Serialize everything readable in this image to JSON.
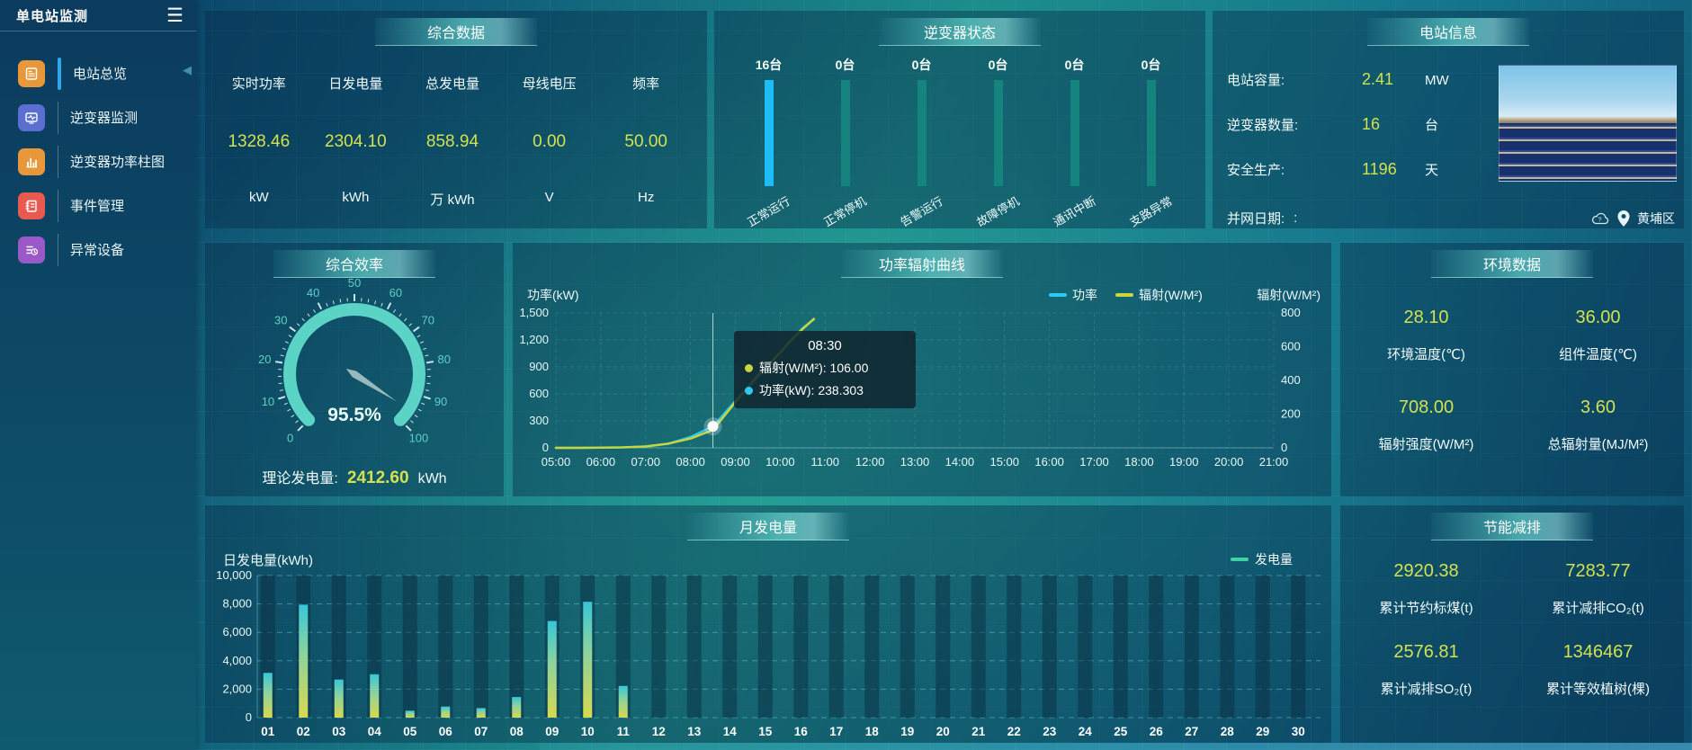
{
  "sidebar": {
    "title": "单电站监测",
    "menu": [
      {
        "label": "电站总览",
        "icon": "document-icon",
        "color": "#e8983a",
        "active": true
      },
      {
        "label": "逆变器监测",
        "icon": "monitor-pulse-icon",
        "color": "#5a6fd0",
        "active": false
      },
      {
        "label": "逆变器功率柱图",
        "icon": "bar-chart-icon",
        "color": "#e8983a",
        "active": false
      },
      {
        "label": "事件管理",
        "icon": "notebook-icon",
        "color": "#e85a50",
        "active": false
      },
      {
        "label": "异常设备",
        "icon": "device-list-icon",
        "color": "#9b59c8",
        "active": false
      }
    ]
  },
  "panels": {
    "summary": {
      "title": "综合数据",
      "metrics": [
        {
          "label": "实时功率",
          "value": "1328.46",
          "unit": "kW"
        },
        {
          "label": "日发电量",
          "value": "2304.10",
          "unit": "kWh"
        },
        {
          "label": "总发电量",
          "value": "858.94",
          "unit": "万 kWh"
        },
        {
          "label": "母线电压",
          "value": "0.00",
          "unit": "V"
        },
        {
          "label": "频率",
          "value": "50.00",
          "unit": "Hz"
        }
      ]
    },
    "inverter_status": {
      "title": "逆变器状态",
      "active_color": "#1fbdf5",
      "idle_color": "#15847f",
      "items": [
        {
          "count": "16台",
          "label": "正常运行",
          "active": true
        },
        {
          "count": "0台",
          "label": "正常停机",
          "active": false
        },
        {
          "count": "0台",
          "label": "告警运行",
          "active": false
        },
        {
          "count": "0台",
          "label": "故障停机",
          "active": false
        },
        {
          "count": "0台",
          "label": "通讯中断",
          "active": false
        },
        {
          "count": "0台",
          "label": "支路异常",
          "active": false
        }
      ]
    },
    "station_info": {
      "title": "电站信息",
      "rows": [
        {
          "label": "电站容量:",
          "value": "2.41",
          "unit": "MW"
        },
        {
          "label": "逆变器数量:",
          "value": "16",
          "unit": "台"
        },
        {
          "label": "安全生产:",
          "value": "1196",
          "unit": "天"
        }
      ],
      "grid_date_label": "并网日期:",
      "grid_date_value": ":",
      "location": "黄埔区"
    },
    "efficiency": {
      "title": "综合效率",
      "footer_label": "理论发电量:",
      "footer_value": "2412.60",
      "footer_unit": "kWh"
    },
    "environment": {
      "title": "环境数据",
      "metrics": [
        {
          "value": "28.10",
          "label": "环境温度(℃)"
        },
        {
          "value": "36.00",
          "label": "组件温度(℃)"
        },
        {
          "value": "708.00",
          "label": "辐射强度(W/M²)"
        },
        {
          "value": "3.60",
          "label": "总辐射量(MJ/M²)"
        }
      ]
    },
    "energy_saving": {
      "title": "节能减排",
      "metrics": [
        {
          "value": "2920.38",
          "label": "累计节约标煤(t)"
        },
        {
          "value": "7283.77",
          "label": "累计减排CO₂(t)"
        },
        {
          "value": "2576.81",
          "label": "累计减排SO₂(t)"
        },
        {
          "value": "1346467",
          "label": "累计等效植树(棵)"
        }
      ]
    }
  },
  "chart_data": [
    {
      "id": "efficiency_gauge",
      "type": "gauge",
      "title": "综合效率",
      "min": 0,
      "max": 100,
      "tick_labels": [
        0,
        10,
        20,
        30,
        40,
        50,
        60,
        70,
        80,
        90,
        100
      ],
      "value": 95.5,
      "value_label": "95.5%",
      "arc_color": "#5bd3c5"
    },
    {
      "id": "power_radiation_curve",
      "type": "line",
      "title": "功率辐射曲线",
      "ylabel_left": "功率(kW)",
      "ylabel_right": "辐射(W/M²)",
      "ylim_left": [
        0,
        1500
      ],
      "yticks_left": [
        "0",
        "300",
        "600",
        "900",
        "1,200",
        "1,500"
      ],
      "ylim_right": [
        0,
        800
      ],
      "yticks_right": [
        "0",
        "200",
        "400",
        "600",
        "800"
      ],
      "x_ticks": [
        "05:00",
        "06:00",
        "07:00",
        "08:00",
        "09:00",
        "10:00",
        "11:00",
        "12:00",
        "13:00",
        "14:00",
        "15:00",
        "16:00",
        "17:00",
        "18:00",
        "19:00",
        "20:00",
        "21:00"
      ],
      "x_range_hours": [
        5,
        21
      ],
      "series": [
        {
          "name": "功率",
          "axis": "left",
          "color": "#2fc8f0",
          "x": [
            5,
            5.5,
            6,
            6.5,
            7,
            7.5,
            8,
            8.5,
            9,
            9.5,
            10,
            10.25,
            10.5,
            10.75
          ],
          "values": [
            0,
            0,
            2,
            5,
            15,
            45,
            120,
            238.3,
            520,
            790,
            1060,
            1200,
            1330,
            1430
          ]
        },
        {
          "name": "辐射(W/M²)",
          "axis": "right",
          "color": "#c8d63c",
          "x": [
            5,
            5.5,
            6,
            6.5,
            7,
            7.5,
            8,
            8.5,
            9,
            9.5,
            10,
            10.25,
            10.5,
            10.75
          ],
          "values": [
            0,
            0,
            1,
            3,
            8,
            25,
            55,
            106,
            270,
            430,
            565,
            640,
            705,
            765
          ]
        }
      ],
      "crosshair_x": 8.5,
      "tooltip": {
        "title": "08:30",
        "rows": [
          {
            "marker_color": "#c8d63c",
            "label": "辐射(W/M²)",
            "value": "106.00"
          },
          {
            "marker_color": "#2fc8f0",
            "label": "功率(kW)",
            "value": "238.303"
          }
        ]
      }
    },
    {
      "id": "monthly_generation",
      "type": "bar",
      "title": "月发电量",
      "ylabel": "日发电量(kWh)",
      "legend": "发电量",
      "legend_color": "#3fd0a8",
      "ylim": [
        0,
        10000
      ],
      "yticks": [
        "0",
        "2,000",
        "4,000",
        "6,000",
        "8,000",
        "10,000"
      ],
      "categories": [
        "01",
        "02",
        "03",
        "04",
        "05",
        "06",
        "07",
        "08",
        "09",
        "10",
        "11",
        "12",
        "13",
        "14",
        "15",
        "16",
        "17",
        "18",
        "19",
        "20",
        "21",
        "22",
        "23",
        "24",
        "25",
        "26",
        "27",
        "28",
        "29",
        "30"
      ],
      "values": [
        3150,
        7950,
        2680,
        3050,
        490,
        780,
        670,
        1450,
        6800,
        8150,
        2230,
        0,
        0,
        0,
        0,
        0,
        0,
        0,
        0,
        0,
        0,
        0,
        0,
        0,
        0,
        0,
        0,
        0,
        0,
        0
      ],
      "bar_gradient": [
        "#d8d84f",
        "#8fd49a",
        "#38c6d8"
      ]
    }
  ]
}
